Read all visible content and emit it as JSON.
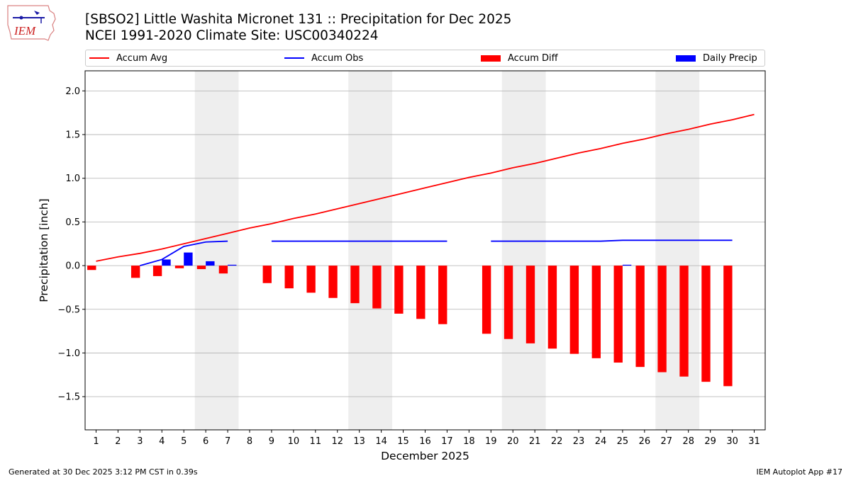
{
  "title_line1": "[SBSO2] Little Washita Micronet 131 :: Precipitation for Dec 2025",
  "title_line2": "NCEI 1991-2020 Climate Site: USC00340224",
  "logo_text": "IEM",
  "footer_left": "Generated at 30 Dec 2025 3:12 PM CST in 0.39s",
  "footer_right": "IEM Autoplot App #17",
  "colors": {
    "avg": "#ff0000",
    "obs": "#0000ff",
    "diff": "#ff0000",
    "daily": "#0000ff",
    "weekend": "#eeeeee",
    "grid": "#b0b0b0"
  },
  "chart_data": {
    "type": "bar+line",
    "title": "[SBSO2] Little Washita Micronet 131 :: Precipitation for Dec 2025",
    "xlabel": "December 2025",
    "ylabel": "Precipitation [inch]",
    "xlim": [
      0.5,
      31.5
    ],
    "ylim": [
      -1.88,
      2.23
    ],
    "yticks": [
      -1.5,
      -1.0,
      -0.5,
      0.0,
      0.5,
      1.0,
      1.5,
      2.0
    ],
    "ytick_labels": [
      "−1.5",
      "−1.0",
      "−0.5",
      "0.0",
      "0.5",
      "1.0",
      "1.5",
      "2.0"
    ],
    "grid": true,
    "legend": [
      "Accum Avg",
      "Accum Obs",
      "Accum Diff",
      "Daily Precip"
    ],
    "days": [
      1,
      2,
      3,
      4,
      5,
      6,
      7,
      8,
      9,
      10,
      11,
      12,
      13,
      14,
      15,
      16,
      17,
      18,
      19,
      20,
      21,
      22,
      23,
      24,
      25,
      26,
      27,
      28,
      29,
      30,
      31
    ],
    "weekend_bands": [
      [
        5.5,
        7.5
      ],
      [
        12.5,
        14.5
      ],
      [
        19.5,
        21.5
      ],
      [
        26.5,
        28.5
      ]
    ],
    "accum_avg": [
      0.05,
      0.1,
      0.14,
      0.19,
      0.25,
      0.31,
      0.37,
      0.43,
      0.48,
      0.54,
      0.59,
      0.65,
      0.71,
      0.77,
      0.83,
      0.89,
      0.95,
      1.01,
      1.06,
      1.12,
      1.17,
      1.23,
      1.29,
      1.34,
      1.4,
      1.45,
      1.51,
      1.56,
      1.62,
      1.67,
      1.73
    ],
    "accum_obs": [
      null,
      null,
      0.0,
      0.07,
      0.22,
      0.27,
      0.28,
      null,
      0.28,
      0.28,
      0.28,
      0.28,
      0.28,
      0.28,
      0.28,
      0.28,
      0.28,
      null,
      0.28,
      0.28,
      0.28,
      0.28,
      0.28,
      0.28,
      0.29,
      0.29,
      0.29,
      0.29,
      0.29,
      0.29,
      null
    ],
    "accum_diff": [
      -0.05,
      null,
      -0.14,
      -0.12,
      -0.03,
      -0.04,
      -0.09,
      null,
      -0.2,
      -0.26,
      -0.31,
      -0.37,
      -0.43,
      -0.49,
      -0.55,
      -0.61,
      -0.67,
      null,
      -0.78,
      -0.84,
      -0.89,
      -0.95,
      -1.01,
      -1.06,
      -1.11,
      -1.16,
      -1.22,
      -1.27,
      -1.33,
      -1.38,
      null
    ],
    "daily_precip": [
      null,
      null,
      0.0,
      0.07,
      0.15,
      0.05,
      0.01,
      null,
      0,
      0,
      0,
      0,
      0,
      0,
      0,
      0,
      0,
      null,
      0,
      0,
      0,
      0,
      0,
      0,
      0.01,
      0,
      0,
      0,
      0,
      0,
      null
    ]
  }
}
